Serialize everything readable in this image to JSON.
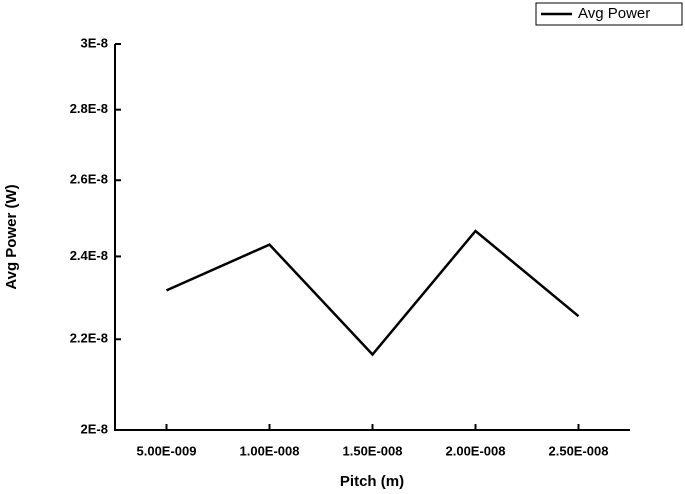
{
  "chart_data": {
    "type": "line",
    "x_label": "Pitch (m)",
    "y_label": "Avg Power (W)",
    "x": [
      5e-09,
      1e-08,
      1.5e-08,
      2e-08,
      2.5e-08
    ],
    "series": [
      {
        "name": "Avg Power",
        "color": "#000000",
        "values": [
          2.316e-08,
          2.43e-08,
          2.165e-08,
          2.465e-08,
          2.254e-08
        ]
      }
    ],
    "xlim": [
      2.5e-09,
      2.75e-08
    ],
    "xticks": [
      {
        "value": 5e-09,
        "label": "5.00E-009"
      },
      {
        "value": 1e-08,
        "label": "1.00E-008"
      },
      {
        "value": 1.5e-08,
        "label": "1.50E-008"
      },
      {
        "value": 2e-08,
        "label": "2.00E-008"
      },
      {
        "value": 2.5e-08,
        "label": "2.50E-008"
      }
    ],
    "ylim": [
      2e-08,
      3e-08
    ],
    "yticks": [
      {
        "value": 2e-08,
        "label": "2E-8"
      },
      {
        "value": 2.2e-08,
        "label": "2.2E-8"
      },
      {
        "value": 2.4e-08,
        "label": "2.4E-8"
      },
      {
        "value": 2.6e-08,
        "label": "2.6E-8"
      },
      {
        "value": 2.8e-08,
        "label": "2.8E-8"
      },
      {
        "value": 3e-08,
        "label": "3E-8"
      }
    ],
    "y_log": true,
    "grid": false,
    "legend": "top-right"
  }
}
